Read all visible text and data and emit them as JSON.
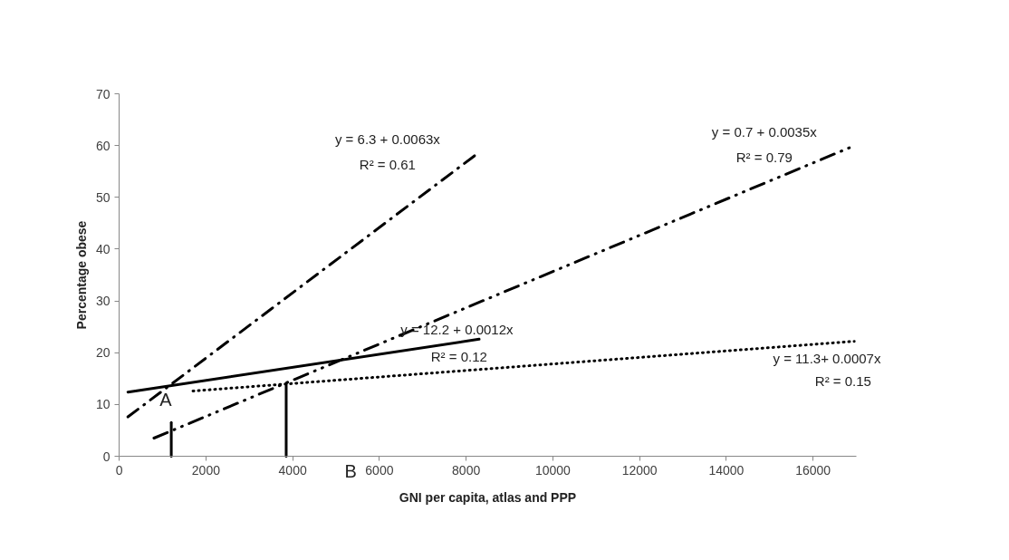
{
  "chart_data": {
    "type": "line",
    "xlabel": "GNI per capita, atlas and PPP",
    "ylabel": "Percentage obese",
    "xlim": [
      0,
      17000
    ],
    "xticks": [
      0,
      2000,
      4000,
      6000,
      8000,
      10000,
      12000,
      14000,
      16000
    ],
    "ylim": [
      0,
      70
    ],
    "yticks": [
      0,
      10,
      20,
      30,
      40,
      50,
      60,
      70
    ],
    "grid": false,
    "series": [
      {
        "color": "#000000",
        "line_style": "dashdot",
        "x": [
          200,
          8300
        ],
        "values": [
          7.6,
          58.7
        ]
      },
      {
        "color": "#000000",
        "line_style": "dashdotdot",
        "x": [
          800,
          16900
        ],
        "values": [
          3.5,
          59.8
        ]
      },
      {
        "color": "#000000",
        "line_style": "solid",
        "x": [
          200,
          8300
        ],
        "values": [
          12.4,
          22.6
        ]
      },
      {
        "color": "#000000",
        "line_style": "dotted",
        "x": [
          1700,
          16950
        ],
        "values": [
          12.6,
          22.2
        ]
      },
      {
        "color": "#000000",
        "line_style": "solid",
        "x": [
          1200,
          1200
        ],
        "values": [
          0,
          6.5
        ]
      },
      {
        "color": "#000000",
        "line_style": "solid",
        "x": [
          3850,
          3850
        ],
        "values": [
          0,
          14
        ]
      }
    ],
    "annotations": [
      "y = 6.3 + 0.0063x",
      "R² = 0.61",
      "y = 0.7 + 0.0035x",
      "R² = 0.79",
      "y = 12.2 + 0.0012x",
      "R² = 0.12",
      "y = 11.3+ 0.0007x",
      "R² = 0.15",
      "A",
      "B"
    ]
  }
}
